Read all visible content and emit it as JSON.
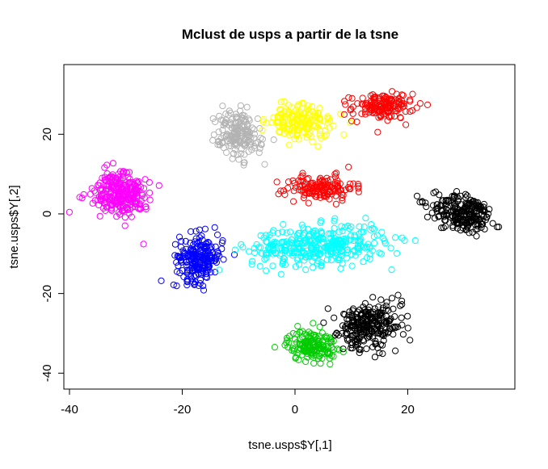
{
  "chart_data": {
    "type": "scatter",
    "title": "Mclust de usps a partir de la tsne",
    "xlabel": "tsne.usps$Y[,1]",
    "ylabel": "tsne.usps$Y[,2]",
    "xlim": [
      -41,
      39
    ],
    "ylim": [
      -44,
      37.5
    ],
    "x_ticks": [
      -40,
      -20,
      0,
      20
    ],
    "y_ticks": [
      -40,
      -20,
      0,
      20
    ],
    "x_tick_labels": [
      "-40",
      "-20",
      "0",
      "20"
    ],
    "y_tick_labels": [
      "-40",
      "-20",
      "0",
      "20"
    ],
    "grid": false,
    "legend": "none",
    "marker": "open circle",
    "clusters": [
      {
        "color": "#ff00ff",
        "n": 260,
        "center": [
          -31,
          5
        ],
        "spread": [
          4.5,
          5.5
        ],
        "angle": 35
      },
      {
        "color": "#b3b3b3",
        "n": 180,
        "center": [
          -10,
          20
        ],
        "spread": [
          3.5,
          5.5
        ],
        "angle": 20
      },
      {
        "color": "#ffff00",
        "n": 170,
        "center": [
          1,
          23
        ],
        "spread": [
          5,
          4
        ],
        "angle": -20
      },
      {
        "color": "#ff0000",
        "n": 150,
        "center": [
          15.5,
          27
        ],
        "spread": [
          5,
          3
        ],
        "angle": 5
      },
      {
        "color": "#ff0000",
        "n": 140,
        "center": [
          4.5,
          6.5
        ],
        "spread": [
          5.5,
          2.8
        ],
        "angle": 0
      },
      {
        "color": "#000000",
        "n": 230,
        "center": [
          30,
          0
        ],
        "spread": [
          5.5,
          4
        ],
        "angle": -25
      },
      {
        "color": "#0000ff",
        "n": 220,
        "center": [
          -17,
          -11
        ],
        "spread": [
          3.5,
          5.5
        ],
        "angle": -5
      },
      {
        "color": "#00ffff",
        "n": 340,
        "center": [
          4,
          -8
        ],
        "spread": [
          11,
          4.5
        ],
        "angle": 5
      },
      {
        "color": "#00cc00",
        "n": 160,
        "center": [
          3,
          -33
        ],
        "spread": [
          4,
          3.5
        ],
        "angle": 0
      },
      {
        "color": "#000000",
        "n": 260,
        "center": [
          13,
          -28
        ],
        "spread": [
          5.5,
          5
        ],
        "angle": 35
      }
    ]
  }
}
